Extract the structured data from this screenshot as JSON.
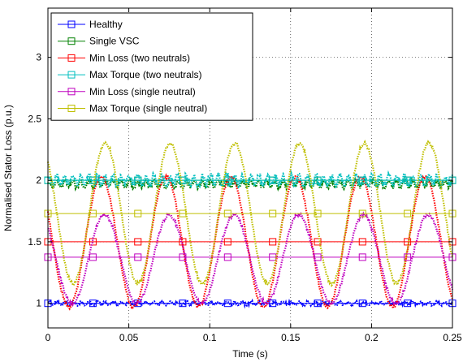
{
  "chart_data": {
    "type": "line",
    "xlabel": "Time (s)",
    "ylabel": "Normalised Stator Loss (p.u.)",
    "xlim": [
      0,
      0.25
    ],
    "ylim": [
      0.8,
      3.4
    ],
    "xticks": [
      0,
      0.05,
      0.1,
      0.15,
      0.2,
      0.25
    ],
    "xtick_labels": [
      "0",
      "0.05",
      "0.1",
      "0.15",
      "0.2",
      "0.25"
    ],
    "yticks": [
      1,
      1.5,
      2,
      2.5,
      3
    ],
    "ytick_labels": [
      "1",
      "1.5",
      "2",
      "2.5",
      "3"
    ],
    "grid": true,
    "legend_position": "top-left",
    "marker": "square",
    "series": [
      {
        "name": "Healthy",
        "color": "#0000ff",
        "marker_value": 1.0,
        "ripple": {
          "mean": 1.0,
          "amplitude": 0.02,
          "period": 0.005
        },
        "marker_x": [
          0,
          0.0278,
          0.0556,
          0.0833,
          0.1111,
          0.1389,
          0.1667,
          0.1944,
          0.2222,
          0.25
        ]
      },
      {
        "name": "Single VSC",
        "color": "#008000",
        "marker_value": 2.0,
        "ripple": {
          "mean": 1.97,
          "amplitude": 0.04,
          "period": 0.005
        },
        "marker_x": [
          0,
          0.0278,
          0.0556,
          0.0833,
          0.1111,
          0.1389,
          0.1667,
          0.1944,
          0.2222,
          0.25
        ]
      },
      {
        "name": "Min Loss (two neutrals)",
        "color": "#ff0000",
        "marker_value": 1.5,
        "oscillation": {
          "mean": 1.5,
          "amplitude": 0.53,
          "period": 0.04,
          "phase_peak_x": 0.033
        },
        "marker_x": [
          0,
          0.0278,
          0.0556,
          0.0833,
          0.1111,
          0.1389,
          0.1667,
          0.1944,
          0.2222,
          0.25
        ]
      },
      {
        "name": "Max Torque (two neutrals)",
        "color": "#00bfbf",
        "marker_value": 2.0,
        "ripple": {
          "mean": 2.0,
          "amplitude": 0.06,
          "period": 0.005
        },
        "marker_x": [
          0,
          0.0278,
          0.0556,
          0.0833,
          0.1111,
          0.1389,
          0.1667,
          0.1944,
          0.2222,
          0.25
        ]
      },
      {
        "name": "Min Loss (single neutral)",
        "color": "#bf00bf",
        "marker_value": 1.375,
        "oscillation": {
          "mean": 1.36,
          "amplitude": 0.36,
          "period": 0.04,
          "phase_peak_x": 0.035
        },
        "marker_x": [
          0,
          0.0278,
          0.0556,
          0.0833,
          0.1111,
          0.1389,
          0.1667,
          0.1944,
          0.2222,
          0.25
        ]
      },
      {
        "name": "Max Torque (single neutral)",
        "color": "#bfbf00",
        "marker_value": 1.73,
        "oscillation": {
          "mean": 1.73,
          "amplitude": 0.57,
          "period": 0.04,
          "phase_peak_x": 0.0355
        },
        "marker_x": [
          0,
          0.0278,
          0.0556,
          0.0833,
          0.1111,
          0.1389,
          0.1667,
          0.1944,
          0.2222,
          0.25
        ]
      }
    ]
  }
}
